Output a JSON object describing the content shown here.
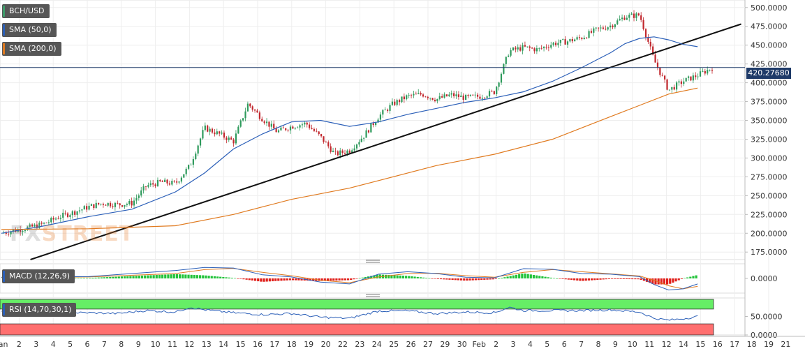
{
  "labels": {
    "symbol": "BCH/USD",
    "sma50": "SMA (50,0)",
    "sma200": "SMA (200,0)",
    "macd": "MACD (12,26,9)",
    "rsi": "RSI (14,70,30,1)"
  },
  "colors": {
    "symbol": "#3d9b6a",
    "sma50": "#2b5fb8",
    "sma200": "#e07a1f",
    "up": "#2e9a5c",
    "down": "#c1272d",
    "trendline": "#111111",
    "macd_line": "#2b5fb8",
    "signal_line": "#e07a1f",
    "hist_pos": "#22c33a",
    "hist_neg": "#e0201b",
    "rsi_line": "#2b5fb8",
    "overbought_band": "#66ee66",
    "oversold_band": "#ff6f6f",
    "price_line": "#1e3a68"
  },
  "watermark": {
    "part1": "FX",
    "part2": "STREET"
  },
  "current_price": "420.27680",
  "chart_data": {
    "type": "candlestick",
    "x_ticks": [
      "Jan",
      "2",
      "3",
      "4",
      "5",
      "6",
      "7",
      "8",
      "9",
      "10",
      "11",
      "12",
      "13",
      "14",
      "15",
      "16",
      "17",
      "18",
      "19",
      "20",
      "22",
      "23",
      "24",
      "25",
      "26",
      "27",
      "29",
      "30",
      "Feb",
      "2",
      "3",
      "4",
      "5",
      "6",
      "7",
      "8",
      "9",
      "10",
      "11",
      "12",
      "14",
      "15",
      "16",
      "17",
      "18",
      "19",
      "21"
    ],
    "y_ticks": [
      "500.0000",
      "475.0000",
      "450.0000",
      "425.0000",
      "400.0000",
      "375.0000",
      "350.0000",
      "325.0000",
      "300.0000",
      "275.0000",
      "250.0000",
      "225.0000",
      "200.0000",
      "175.0000"
    ],
    "ylim": [
      165,
      510
    ],
    "price_path": [
      [
        0,
        200
      ],
      [
        2,
        208
      ],
      [
        3,
        213
      ],
      [
        4,
        222
      ],
      [
        5,
        228
      ],
      [
        6,
        235
      ],
      [
        7,
        240
      ],
      [
        8,
        238
      ],
      [
        9,
        240
      ],
      [
        10,
        263
      ],
      [
        11,
        268
      ],
      [
        12,
        266
      ],
      [
        13,
        290
      ],
      [
        14,
        340
      ],
      [
        15,
        332
      ],
      [
        16,
        322
      ],
      [
        17,
        372
      ],
      [
        18,
        352
      ],
      [
        19,
        335
      ],
      [
        20,
        342
      ],
      [
        21,
        346
      ],
      [
        22,
        328
      ],
      [
        23,
        305
      ],
      [
        24,
        310
      ],
      [
        25,
        330
      ],
      [
        26,
        355
      ],
      [
        27,
        372
      ],
      [
        28,
        382
      ],
      [
        29,
        385
      ],
      [
        30,
        378
      ],
      [
        31,
        384
      ],
      [
        32,
        380
      ],
      [
        33,
        382
      ],
      [
        34,
        388
      ],
      [
        35,
        442
      ],
      [
        36,
        447
      ],
      [
        37,
        444
      ],
      [
        38,
        452
      ],
      [
        39,
        455
      ],
      [
        40,
        460
      ],
      [
        41,
        470
      ],
      [
        42,
        476
      ],
      [
        43,
        488
      ],
      [
        44,
        490
      ],
      [
        45,
        430
      ],
      [
        46,
        390
      ],
      [
        47,
        402
      ],
      [
        48,
        410
      ],
      [
        49,
        420
      ]
    ],
    "series": [
      {
        "name": "SMA (50,0)",
        "values": [
          [
            0,
            200
          ],
          [
            3,
            210
          ],
          [
            6,
            222
          ],
          [
            9,
            232
          ],
          [
            12,
            255
          ],
          [
            14,
            280
          ],
          [
            16,
            312
          ],
          [
            18,
            332
          ],
          [
            20,
            348
          ],
          [
            22,
            350
          ],
          [
            24,
            342
          ],
          [
            26,
            348
          ],
          [
            28,
            358
          ],
          [
            30,
            366
          ],
          [
            32,
            374
          ],
          [
            34,
            380
          ],
          [
            36,
            388
          ],
          [
            38,
            402
          ],
          [
            40,
            420
          ],
          [
            42,
            440
          ],
          [
            43,
            452
          ],
          [
            44,
            459
          ],
          [
            45,
            461
          ],
          [
            46,
            457
          ],
          [
            47,
            451
          ],
          [
            48,
            448
          ]
        ]
      },
      {
        "name": "SMA (200,0)",
        "values": [
          [
            0,
            205
          ],
          [
            6,
            206
          ],
          [
            12,
            210
          ],
          [
            16,
            225
          ],
          [
            20,
            245
          ],
          [
            24,
            260
          ],
          [
            26,
            270
          ],
          [
            30,
            290
          ],
          [
            34,
            305
          ],
          [
            38,
            325
          ],
          [
            40,
            340
          ],
          [
            42,
            355
          ],
          [
            44,
            370
          ],
          [
            46,
            385
          ],
          [
            48,
            393
          ]
        ]
      }
    ],
    "trendline": [
      [
        2,
        165
      ],
      [
        51,
        478
      ]
    ],
    "macd": {
      "ylim": [
        -0.012,
        0.012
      ],
      "y_ticks": [
        "0.0000"
      ],
      "macd_line": [
        [
          0,
          0.001
        ],
        [
          6,
          0.0015
        ],
        [
          12,
          0.0065
        ],
        [
          14,
          0.009
        ],
        [
          16,
          0.0085
        ],
        [
          18,
          0.003
        ],
        [
          20,
          0.0012
        ],
        [
          22,
          -0.003
        ],
        [
          24,
          -0.0045
        ],
        [
          26,
          0.0035
        ],
        [
          28,
          0.0055
        ],
        [
          30,
          0.004
        ],
        [
          32,
          0.001
        ],
        [
          34,
          0.0005
        ],
        [
          36,
          0.008
        ],
        [
          38,
          0.0075
        ],
        [
          40,
          0.004
        ],
        [
          42,
          0.0035
        ],
        [
          44,
          0.0015
        ],
        [
          45,
          -0.005
        ],
        [
          46,
          -0.0095
        ],
        [
          47,
          -0.0085
        ],
        [
          48,
          -0.0045
        ]
      ],
      "signal_line": [
        [
          0,
          0.0008
        ],
        [
          6,
          0.0012
        ],
        [
          12,
          0.004
        ],
        [
          14,
          0.0072
        ],
        [
          16,
          0.0082
        ],
        [
          18,
          0.005
        ],
        [
          20,
          0.0022
        ],
        [
          22,
          -0.0015
        ],
        [
          24,
          -0.0035
        ],
        [
          26,
          0.0012
        ],
        [
          28,
          0.004
        ],
        [
          30,
          0.0043
        ],
        [
          32,
          0.0023
        ],
        [
          34,
          0.001
        ],
        [
          36,
          0.005
        ],
        [
          38,
          0.0072
        ],
        [
          40,
          0.0055
        ],
        [
          42,
          0.0038
        ],
        [
          44,
          0.002
        ],
        [
          45,
          -0.0015
        ],
        [
          46,
          -0.006
        ],
        [
          47,
          -0.0085
        ],
        [
          48,
          -0.0065
        ]
      ]
    },
    "rsi": {
      "ylim": [
        0,
        100
      ],
      "y_ticks": [
        "50.0000",
        "0.0000"
      ],
      "overbought": 70,
      "oversold": 30,
      "values": [
        [
          0,
          62
        ],
        [
          1,
          55
        ],
        [
          2,
          62
        ],
        [
          4,
          60
        ],
        [
          6,
          60
        ],
        [
          8,
          58
        ],
        [
          10,
          66
        ],
        [
          12,
          62
        ],
        [
          13,
          75
        ],
        [
          14,
          68
        ],
        [
          16,
          60
        ],
        [
          18,
          55
        ],
        [
          20,
          58
        ],
        [
          22,
          48
        ],
        [
          24,
          45
        ],
        [
          26,
          65
        ],
        [
          28,
          65
        ],
        [
          30,
          58
        ],
        [
          32,
          62
        ],
        [
          34,
          60
        ],
        [
          35,
          75
        ],
        [
          36,
          66
        ],
        [
          38,
          66
        ],
        [
          40,
          66
        ],
        [
          42,
          68
        ],
        [
          44,
          62
        ],
        [
          45,
          45
        ],
        [
          46,
          40
        ],
        [
          47,
          44
        ],
        [
          48,
          50
        ]
      ]
    }
  }
}
